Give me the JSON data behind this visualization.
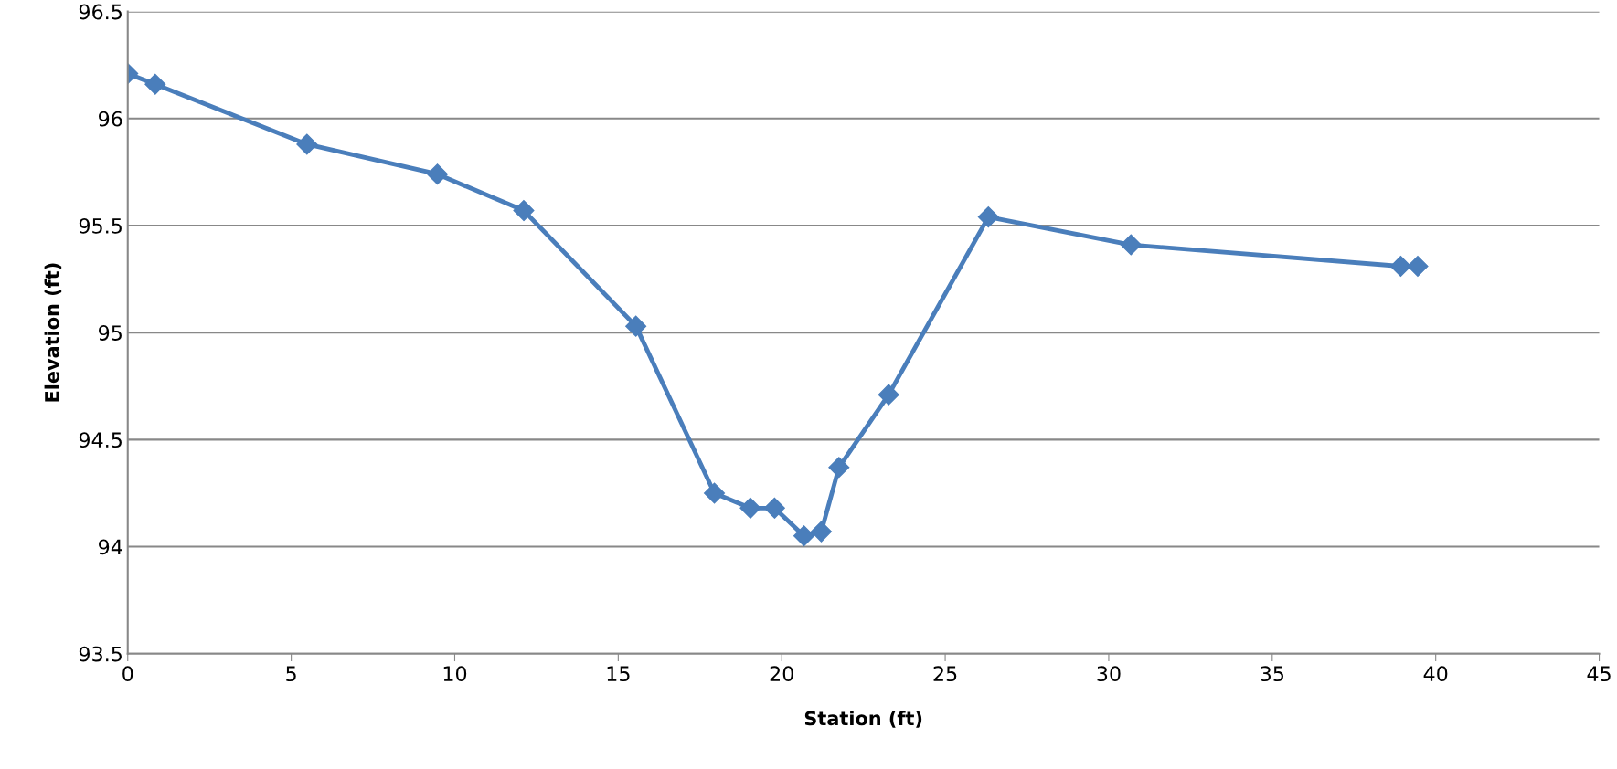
{
  "chart_data": {
    "type": "line",
    "xlabel": "Station (ft)",
    "ylabel": "Elevation (ft)",
    "x": [
      0,
      0.84,
      5.48,
      9.47,
      12.11,
      15.54,
      17.94,
      19.04,
      19.78,
      20.68,
      21.21,
      21.75,
      23.27,
      26.32,
      30.68,
      38.93,
      39.45
    ],
    "series": [
      {
        "color": "#4a7ebb",
        "values": [
          96.21,
          96.16,
          95.88,
          95.74,
          95.57,
          95.03,
          94.25,
          94.18,
          94.18,
          94.05,
          94.07,
          94.37,
          94.71,
          95.54,
          95.41,
          95.31,
          95.31
        ]
      }
    ],
    "xlim": [
      0,
      45
    ],
    "xticks": [
      0,
      5,
      10,
      15,
      20,
      25,
      30,
      35,
      40,
      45
    ],
    "ylim": [
      93.5,
      96.5
    ],
    "yticks": [
      93.5,
      94,
      94.5,
      95,
      95.5,
      96,
      96.5
    ],
    "grid": "y",
    "marker": "diamond",
    "line_style": "solid",
    "legend": false
  }
}
